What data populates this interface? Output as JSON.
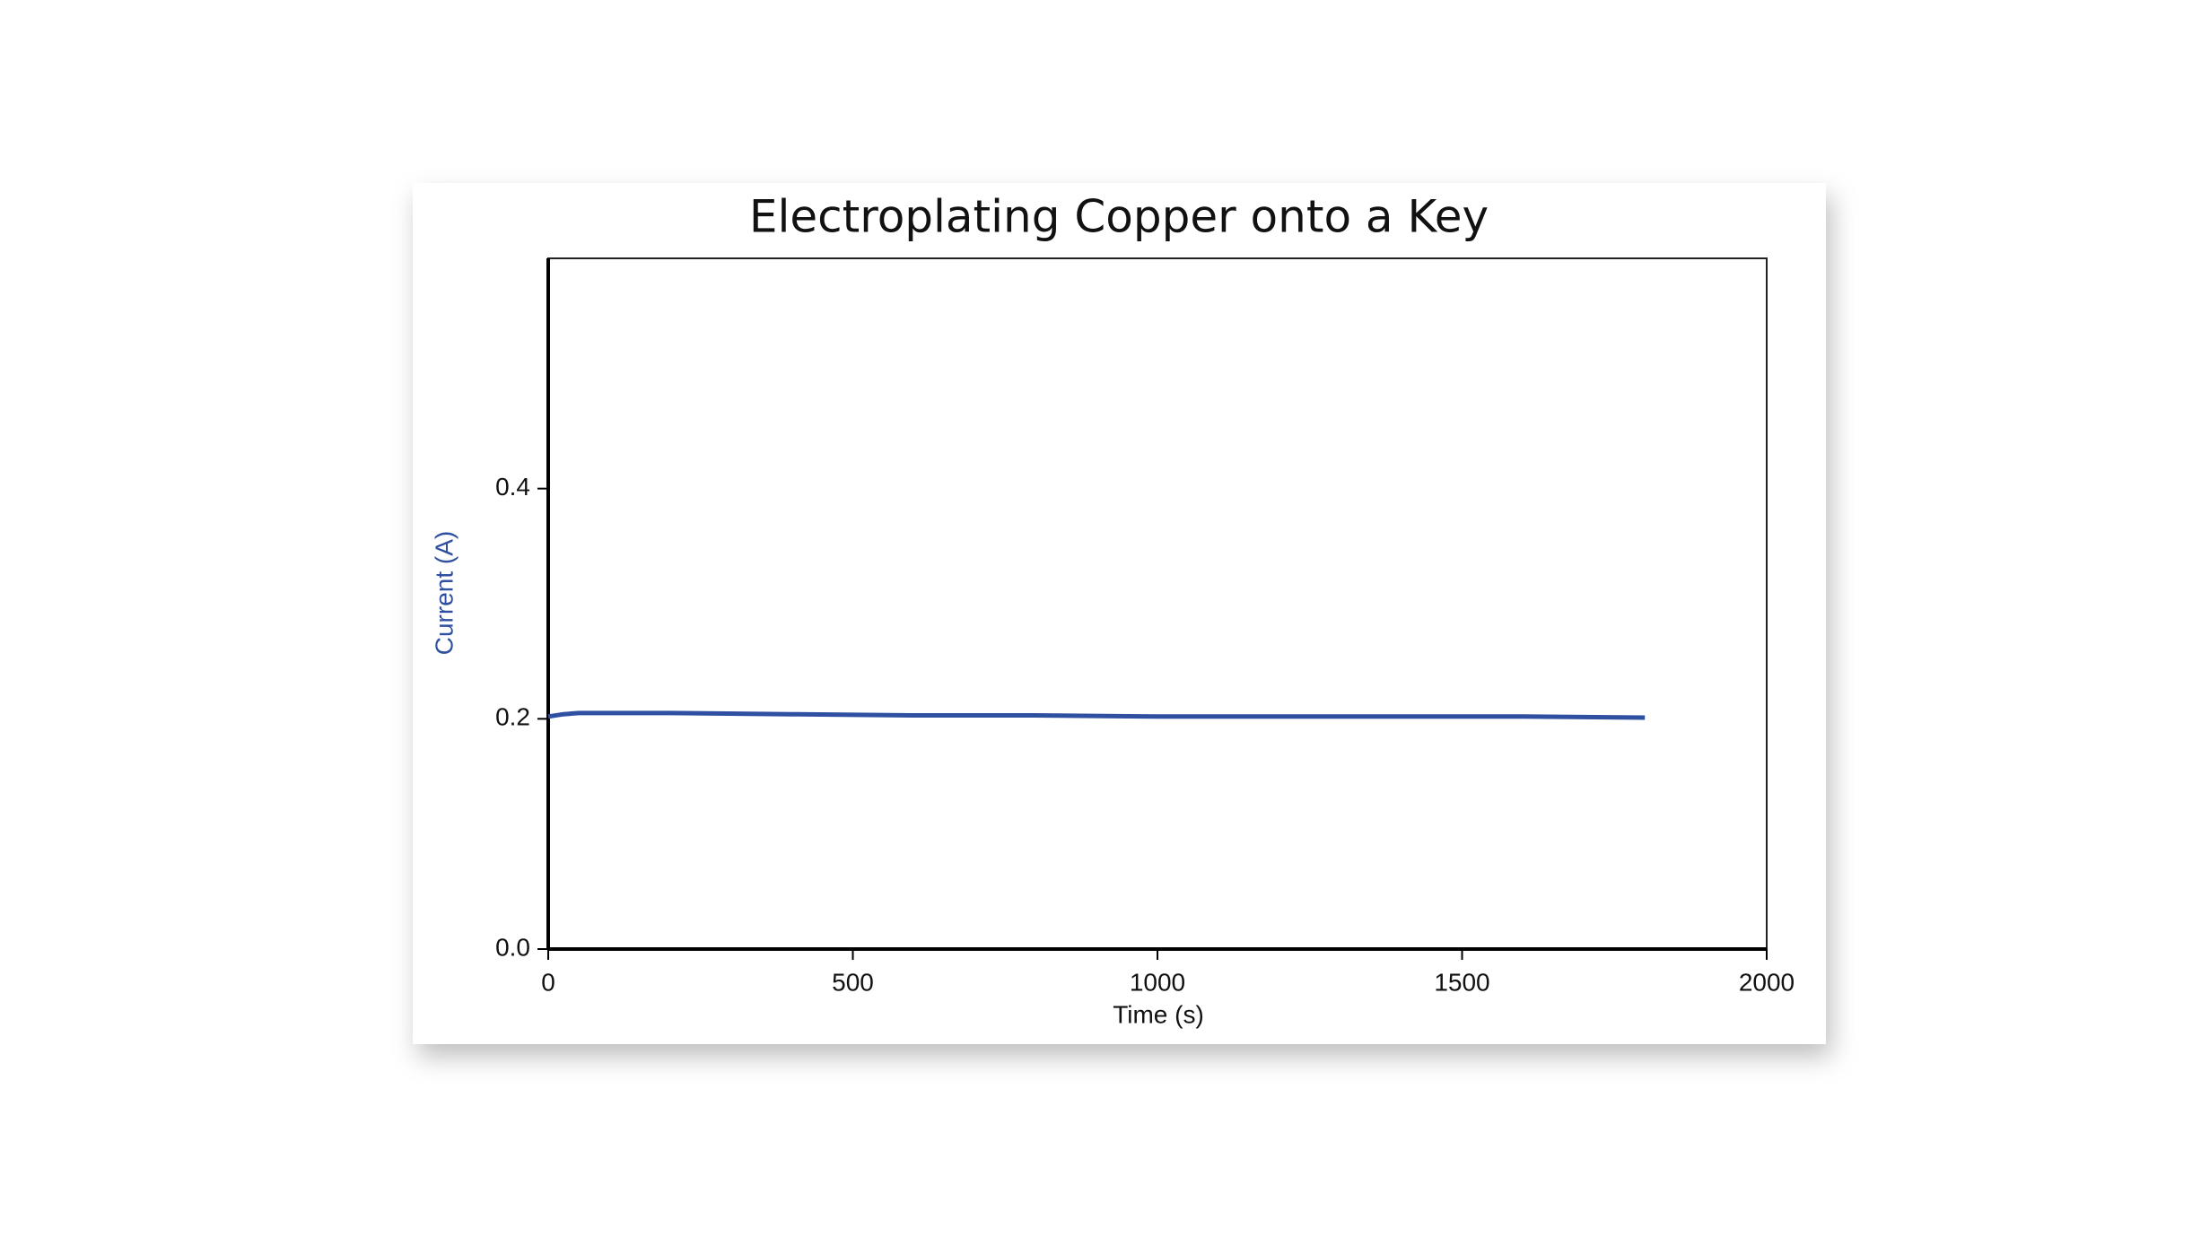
{
  "chart_data": {
    "type": "line",
    "title": "Electroplating Copper onto a Key",
    "xlabel": "Time (s)",
    "ylabel": "Current (A)",
    "ylabel_color": "#2f4fa0",
    "x": [
      0,
      25,
      50,
      100,
      200,
      400,
      600,
      800,
      1000,
      1200,
      1400,
      1600,
      1800
    ],
    "series": [
      {
        "color": "#2f4fa0",
        "values": [
          0.202,
          0.204,
          0.205,
          0.205,
          0.205,
          0.204,
          0.203,
          0.203,
          0.202,
          0.202,
          0.202,
          0.202,
          0.201
        ]
      }
    ],
    "xlim": [
      0,
      2000
    ],
    "xticks": [
      0,
      500,
      1000,
      1500,
      2000
    ],
    "ylim": [
      0,
      0.6
    ],
    "yticks": [
      {
        "value": 0,
        "label": "0.0"
      },
      0.2,
      0.4
    ],
    "grid": false
  }
}
